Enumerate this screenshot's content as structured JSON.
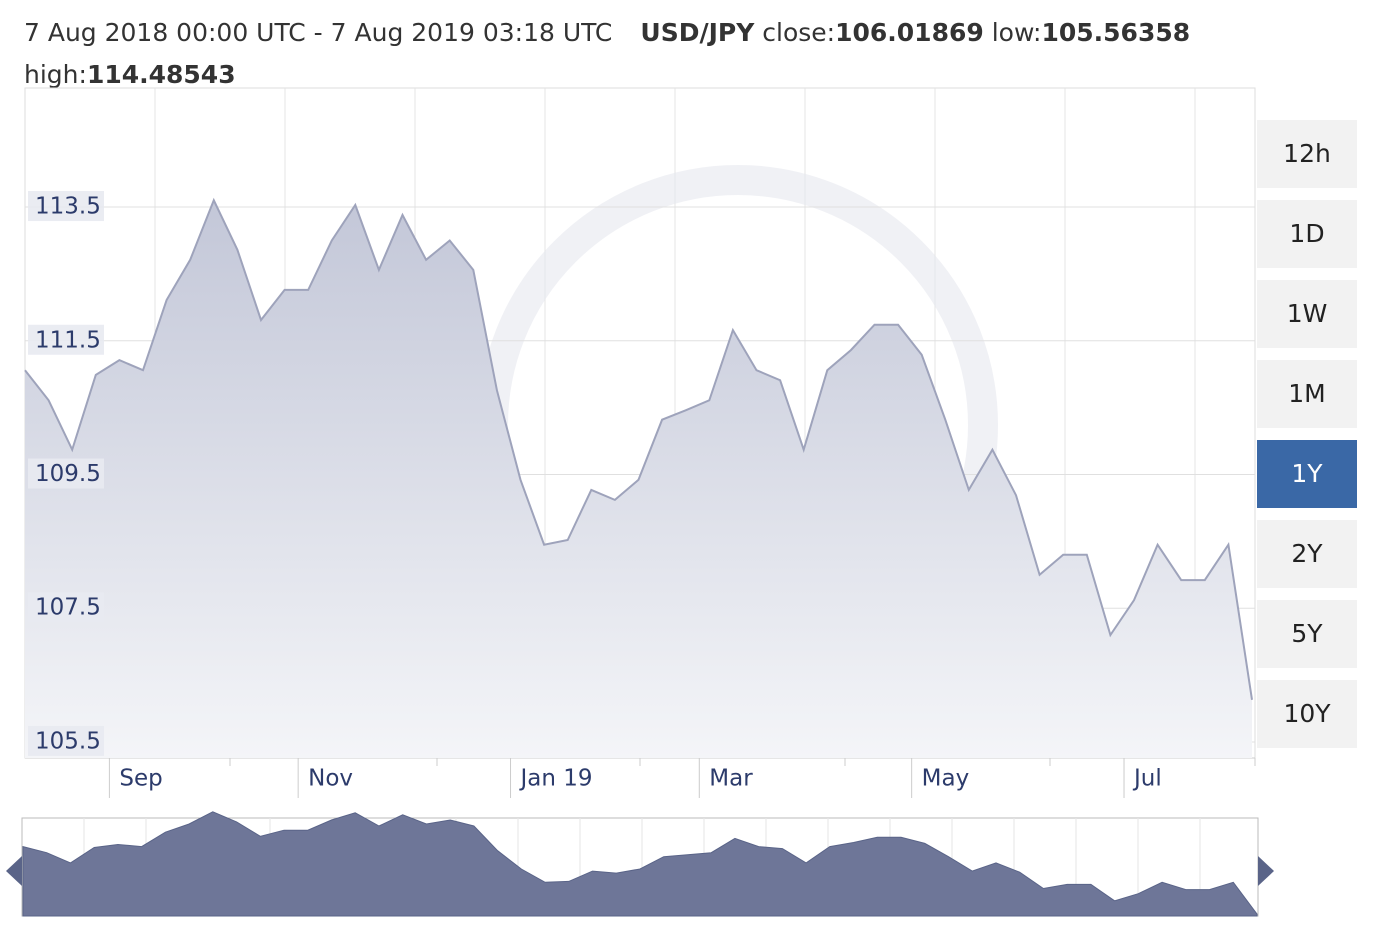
{
  "header": {
    "range": "7 Aug 2018 00:00 UTC - 7 Aug 2019 03:18 UTC",
    "pair": "USD/JPY",
    "close_label": "close:",
    "close": "106.01869",
    "low_label": "low:",
    "low": "105.56358",
    "high_label": "high:",
    "high": "114.48543"
  },
  "range_buttons": [
    "12h",
    "1D",
    "1W",
    "1M",
    "1Y",
    "2Y",
    "5Y",
    "10Y"
  ],
  "selected_range": "1Y",
  "chart_data": {
    "type": "area",
    "categories": [
      null,
      null,
      null,
      null,
      "Sep",
      null,
      null,
      null,
      null,
      null,
      null,
      null,
      "Nov",
      null,
      null,
      null,
      null,
      null,
      null,
      null,
      null,
      "Jan 19",
      null,
      null,
      null,
      null,
      null,
      null,
      null,
      "Mar",
      null,
      null,
      null,
      null,
      null,
      null,
      null,
      null,
      "May",
      null,
      null,
      null,
      null,
      null,
      null,
      null,
      null,
      "Jul",
      null,
      null,
      null,
      null,
      null
    ],
    "series": [
      {
        "name": "USD/JPY",
        "color": "#9ea3bb",
        "values": [
          111.06,
          110.61,
          109.87,
          110.99,
          111.21,
          111.06,
          112.11,
          112.71,
          113.6,
          112.86,
          111.81,
          112.26,
          112.26,
          113.0,
          113.53,
          112.56,
          113.38,
          112.71,
          113.0,
          112.56,
          110.76,
          109.42,
          108.45,
          108.52,
          109.27,
          109.12,
          109.42,
          110.32,
          110.46,
          110.61,
          111.66,
          111.06,
          110.91,
          109.87,
          111.06,
          111.36,
          111.74,
          111.74,
          111.29,
          110.32,
          109.27,
          109.87,
          109.19,
          108.0,
          108.3,
          108.3,
          107.1,
          107.62,
          108.45,
          107.92,
          107.92,
          108.45,
          106.13
        ]
      }
    ],
    "ylim": [
      105.26,
      115.28
    ],
    "yticks": [
      105.5,
      107.5,
      109.5,
      111.5,
      113.5
    ],
    "grid": true
  }
}
